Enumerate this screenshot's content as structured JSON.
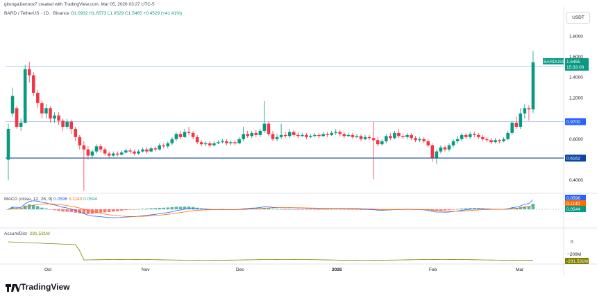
{
  "header": {
    "credit": "gitonga1lennox7 created with TradingView.com, Mar 05, 2026 03:27 UTC-5",
    "symbol": "BARD / TetherUS · 1D · Binance",
    "ohlc": "O1.0932 H1.6573 L1.0529 C1.5465 +0.4529 (+41.41%)",
    "currency": "USDT"
  },
  "chart_data": {
    "type": "candlestick",
    "price_ticks": [
      "1.8000",
      "1.6000",
      "1.4000",
      "1.2000",
      "0.8000",
      "0.4000"
    ],
    "price_range": [
      0.28,
      1.95
    ],
    "x_labels": [
      "Oct",
      "Nov",
      "Dec",
      "2026",
      "Feb",
      "Mar"
    ],
    "horizontal_levels": [
      {
        "value": 1.5088,
        "label": "1.5088",
        "color": "#2962ff"
      },
      {
        "value": 0.97,
        "label": "0.9700",
        "color": "#2962ff"
      },
      {
        "value": 0.6162,
        "label": "0.6162",
        "color": "#0d47a1"
      }
    ],
    "last_price": {
      "symbol": "BARDUSDT",
      "value": "1.5465",
      "countdown": "15:33:00"
    },
    "candles": [
      [
        0.6,
        0.9,
        0.4,
        0.95
      ],
      [
        1.05,
        1.22,
        1.02,
        1.3
      ],
      [
        1.1,
        0.92,
        0.9,
        1.12
      ],
      [
        0.92,
        0.96,
        0.88,
        1.0
      ],
      [
        0.96,
        1.48,
        0.95,
        1.52
      ],
      [
        1.48,
        1.42,
        1.35,
        1.55
      ],
      [
        1.42,
        1.25,
        1.22,
        1.45
      ],
      [
        1.25,
        1.15,
        1.1,
        1.28
      ],
      [
        1.15,
        1.05,
        1.0,
        1.18
      ],
      [
        1.05,
        1.1,
        1.0,
        1.14
      ],
      [
        1.1,
        1.0,
        0.96,
        1.12
      ],
      [
        1.0,
        1.03,
        0.96,
        1.06
      ],
      [
        1.03,
        0.98,
        0.94,
        1.06
      ],
      [
        0.98,
        0.92,
        0.88,
        1.0
      ],
      [
        0.92,
        0.97,
        0.9,
        1.0
      ],
      [
        0.97,
        0.9,
        0.85,
        0.99
      ],
      [
        0.9,
        0.82,
        0.78,
        0.92
      ],
      [
        0.82,
        0.74,
        0.7,
        0.84
      ],
      [
        0.74,
        0.7,
        0.3,
        0.78
      ],
      [
        0.7,
        0.64,
        0.6,
        0.73
      ],
      [
        0.64,
        0.68,
        0.62,
        0.7
      ],
      [
        0.68,
        0.73,
        0.66,
        0.75
      ],
      [
        0.73,
        0.7,
        0.67,
        0.75
      ],
      [
        0.7,
        0.66,
        0.64,
        0.72
      ],
      [
        0.66,
        0.64,
        0.62,
        0.68
      ],
      [
        0.64,
        0.66,
        0.63,
        0.68
      ],
      [
        0.66,
        0.65,
        0.63,
        0.68
      ],
      [
        0.65,
        0.67,
        0.64,
        0.69
      ],
      [
        0.67,
        0.69,
        0.66,
        0.71
      ],
      [
        0.69,
        0.68,
        0.66,
        0.71
      ],
      [
        0.68,
        0.66,
        0.64,
        0.7
      ],
      [
        0.66,
        0.68,
        0.65,
        0.7
      ],
      [
        0.68,
        0.7,
        0.67,
        0.72
      ],
      [
        0.7,
        0.68,
        0.66,
        0.72
      ],
      [
        0.68,
        0.71,
        0.67,
        0.73
      ],
      [
        0.71,
        0.7,
        0.68,
        0.73
      ],
      [
        0.7,
        0.74,
        0.69,
        0.76
      ],
      [
        0.74,
        0.73,
        0.71,
        0.76
      ],
      [
        0.73,
        0.76,
        0.71,
        0.78
      ],
      [
        0.76,
        0.8,
        0.74,
        0.82
      ],
      [
        0.8,
        0.85,
        0.78,
        0.87
      ],
      [
        0.85,
        0.82,
        0.8,
        0.88
      ],
      [
        0.82,
        0.87,
        0.81,
        0.9
      ],
      [
        0.87,
        0.86,
        0.84,
        0.92
      ],
      [
        0.86,
        0.82,
        0.8,
        0.88
      ],
      [
        0.82,
        0.77,
        0.75,
        0.84
      ],
      [
        0.77,
        0.75,
        0.73,
        0.79
      ],
      [
        0.75,
        0.76,
        0.73,
        0.78
      ],
      [
        0.76,
        0.74,
        0.72,
        0.78
      ],
      [
        0.74,
        0.76,
        0.73,
        0.78
      ],
      [
        0.76,
        0.77,
        0.75,
        0.79
      ],
      [
        0.77,
        0.78,
        0.76,
        0.8
      ],
      [
        0.78,
        0.76,
        0.74,
        0.8
      ],
      [
        0.76,
        0.77,
        0.74,
        0.79
      ],
      [
        0.77,
        0.76,
        0.74,
        0.79
      ],
      [
        0.76,
        0.8,
        0.75,
        0.82
      ],
      [
        0.8,
        0.85,
        0.78,
        0.92
      ],
      [
        0.85,
        0.83,
        0.81,
        0.88
      ],
      [
        0.83,
        0.86,
        0.81,
        0.88
      ],
      [
        0.86,
        0.84,
        0.82,
        0.89
      ],
      [
        0.84,
        0.88,
        0.82,
        0.9
      ],
      [
        0.88,
        0.95,
        0.86,
        1.17
      ],
      [
        0.95,
        0.85,
        0.83,
        0.97
      ],
      [
        0.85,
        0.8,
        0.78,
        0.88
      ],
      [
        0.8,
        0.82,
        0.78,
        0.85
      ],
      [
        0.82,
        0.84,
        0.8,
        0.95
      ],
      [
        0.84,
        0.83,
        0.81,
        0.87
      ],
      [
        0.83,
        0.87,
        0.81,
        0.9
      ],
      [
        0.87,
        0.84,
        0.82,
        0.89
      ],
      [
        0.84,
        0.83,
        0.81,
        0.87
      ],
      [
        0.83,
        0.84,
        0.82,
        0.86
      ],
      [
        0.84,
        0.82,
        0.8,
        0.86
      ],
      [
        0.82,
        0.83,
        0.81,
        0.85
      ],
      [
        0.83,
        0.84,
        0.82,
        0.86
      ],
      [
        0.84,
        0.83,
        0.81,
        0.86
      ],
      [
        0.83,
        0.85,
        0.82,
        0.87
      ],
      [
        0.85,
        0.84,
        0.82,
        0.87
      ],
      [
        0.84,
        0.86,
        0.83,
        0.88
      ],
      [
        0.86,
        0.87,
        0.84,
        0.9
      ],
      [
        0.87,
        0.85,
        0.83,
        0.89
      ],
      [
        0.85,
        0.83,
        0.81,
        0.87
      ],
      [
        0.83,
        0.84,
        0.82,
        0.86
      ],
      [
        0.84,
        0.82,
        0.8,
        0.86
      ],
      [
        0.82,
        0.83,
        0.81,
        0.85
      ],
      [
        0.83,
        0.8,
        0.78,
        0.85
      ],
      [
        0.8,
        0.82,
        0.79,
        0.84
      ],
      [
        0.82,
        0.81,
        0.79,
        0.84
      ],
      [
        0.81,
        0.79,
        0.41,
        0.97
      ],
      [
        0.79,
        0.75,
        0.73,
        0.82
      ],
      [
        0.75,
        0.78,
        0.74,
        0.8
      ],
      [
        0.78,
        0.83,
        0.76,
        0.85
      ],
      [
        0.83,
        0.81,
        0.79,
        0.86
      ],
      [
        0.81,
        0.86,
        0.8,
        0.88
      ],
      [
        0.86,
        0.83,
        0.81,
        0.9
      ],
      [
        0.83,
        0.82,
        0.8,
        0.85
      ],
      [
        0.82,
        0.84,
        0.8,
        0.86
      ],
      [
        0.84,
        0.81,
        0.79,
        0.86
      ],
      [
        0.81,
        0.79,
        0.77,
        0.83
      ],
      [
        0.79,
        0.8,
        0.77,
        0.82
      ],
      [
        0.8,
        0.78,
        0.76,
        0.82
      ],
      [
        0.78,
        0.74,
        0.72,
        0.8
      ],
      [
        0.74,
        0.62,
        0.58,
        0.76
      ],
      [
        0.62,
        0.68,
        0.56,
        0.7
      ],
      [
        0.68,
        0.72,
        0.66,
        0.74
      ],
      [
        0.72,
        0.7,
        0.68,
        0.74
      ],
      [
        0.7,
        0.74,
        0.68,
        0.76
      ],
      [
        0.74,
        0.78,
        0.72,
        0.8
      ],
      [
        0.78,
        0.8,
        0.76,
        0.83
      ],
      [
        0.8,
        0.84,
        0.78,
        0.86
      ],
      [
        0.84,
        0.82,
        0.8,
        0.86
      ],
      [
        0.82,
        0.85,
        0.8,
        0.87
      ],
      [
        0.85,
        0.84,
        0.82,
        0.87
      ],
      [
        0.84,
        0.82,
        0.8,
        0.86
      ],
      [
        0.82,
        0.8,
        0.78,
        0.84
      ],
      [
        0.8,
        0.79,
        0.77,
        0.82
      ],
      [
        0.79,
        0.77,
        0.75,
        0.81
      ],
      [
        0.77,
        0.79,
        0.76,
        0.81
      ],
      [
        0.79,
        0.78,
        0.76,
        0.8
      ],
      [
        0.78,
        0.8,
        0.77,
        0.82
      ],
      [
        0.8,
        0.86,
        0.79,
        0.88
      ],
      [
        0.86,
        0.96,
        0.84,
        0.98
      ],
      [
        0.96,
        0.92,
        0.9,
        1.02
      ],
      [
        0.92,
        1.05,
        0.9,
        1.1
      ],
      [
        1.05,
        1.1,
        1.0,
        1.14
      ],
      [
        1.1,
        1.09,
        0.98,
        1.13
      ],
      [
        1.09,
        1.5465,
        1.0529,
        1.6573
      ]
    ],
    "macd": {
      "label": "MACD (close, 12, 26, 9)",
      "values": [
        "0.0596",
        "0.1140",
        "0.0544"
      ],
      "colors": [
        "#2962ff",
        "#ff6d00",
        "#26a69a"
      ]
    },
    "accum": {
      "label": "Accum/Dist",
      "value": "-291.531M",
      "ticks": [
        "0",
        "−200M"
      ],
      "color": "#808000"
    }
  },
  "brand": {
    "name": "TradingView"
  }
}
